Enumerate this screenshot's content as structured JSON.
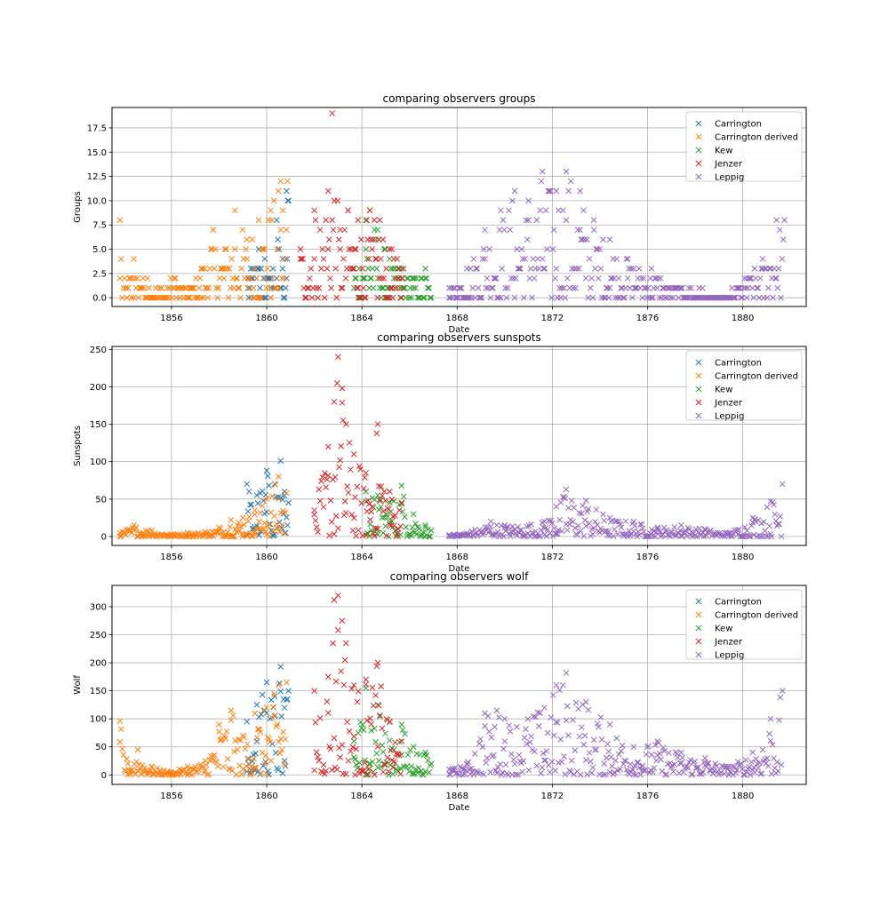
{
  "colors": {
    "Carrington": "#1f77b4",
    "Carrington derived": "#ff7f0e",
    "Kew": "#2ca02c",
    "Jenzer": "#d62728",
    "Leppig": "#9467bd"
  },
  "chart_data": [
    {
      "type": "scatter",
      "marker": "x",
      "title": "comparing observers groups",
      "xlabel": "Date",
      "ylabel": "Groups",
      "xlim": [
        "1853-07-01",
        "1882-09-01"
      ],
      "ylim": [
        -0.9,
        19.6
      ],
      "xticks": [
        "1856",
        "1860",
        "1864",
        "1868",
        "1872",
        "1876",
        "1880"
      ],
      "yticks": [
        0.0,
        2.5,
        5.0,
        7.5,
        10.0,
        12.5,
        15.0,
        17.5
      ],
      "ytick_labels": [
        "0.0",
        "2.5",
        "5.0",
        "7.5",
        "10.0",
        "12.5",
        "15.0",
        "17.5"
      ],
      "grid": true,
      "legend_position": "top-right",
      "series": [
        {
          "name": "Carrington",
          "x": [
            "1859-03-15",
            "1859-06-01",
            "1859-09-01",
            "1859-12-01",
            "1860-03-01",
            "1860-06-01",
            "1860-09-01",
            "1860-11-01",
            "1860-12-01"
          ],
          "y": [
            2,
            3,
            5,
            4,
            2,
            8,
            4,
            11,
            10
          ]
        },
        {
          "name": "Carrington derived",
          "x": [
            "1853-11-01",
            "1854-02-01",
            "1854-06-01",
            "1855-01-01",
            "1855-08-01",
            "1856-03-01",
            "1856-10-01",
            "1857-04-01",
            "1857-10-01",
            "1858-04-01",
            "1858-09-01",
            "1859-03-01",
            "1859-09-01",
            "1860-03-01",
            "1860-08-01",
            "1860-11-15"
          ],
          "y": [
            8,
            1,
            4,
            2,
            1,
            2,
            1,
            3,
            7,
            5,
            9,
            6,
            8,
            9,
            12,
            12
          ]
        },
        {
          "name": "Kew",
          "x": [
            "1863-09-01",
            "1864-03-01",
            "1864-09-01",
            "1865-03-01",
            "1865-09-01",
            "1866-03-01",
            "1866-09-01",
            "1866-12-01"
          ],
          "y": [
            3,
            8,
            7,
            4,
            3,
            2,
            3,
            0
          ]
        },
        {
          "name": "Jenzer",
          "x": [
            "1861-06-01",
            "1862-01-01",
            "1862-08-01",
            "1862-10-01",
            "1863-02-01",
            "1863-06-01",
            "1863-11-01",
            "1864-05-01",
            "1864-10-01",
            "1865-04-01",
            "1865-10-01"
          ],
          "y": [
            5,
            9,
            11,
            19,
            7,
            9,
            8,
            9,
            8,
            5,
            3
          ]
        },
        {
          "name": "Leppig",
          "x": [
            "1867-09-01",
            "1868-06-01",
            "1869-03-01",
            "1869-11-01",
            "1870-06-01",
            "1871-01-01",
            "1871-08-01",
            "1872-03-01",
            "1872-08-01",
            "1873-03-01",
            "1873-10-01",
            "1874-06-01",
            "1875-03-01",
            "1876-03-01",
            "1877-03-01",
            "1878-03-01",
            "1879-03-01",
            "1880-03-01",
            "1880-11-01",
            "1881-06-01",
            "1881-10-01"
          ],
          "y": [
            1,
            3,
            7,
            9,
            11,
            10,
            13,
            11,
            13,
            11,
            8,
            6,
            4,
            3,
            1,
            1,
            0,
            2,
            4,
            8,
            8
          ]
        }
      ]
    },
    {
      "type": "scatter",
      "marker": "x",
      "title": "comparing observers sunspots",
      "xlabel": "Date",
      "ylabel": "Sunspots",
      "xlim": [
        "1853-07-01",
        "1882-09-01"
      ],
      "ylim": [
        -12,
        254
      ],
      "xticks": [
        "1856",
        "1860",
        "1864",
        "1868",
        "1872",
        "1876",
        "1880"
      ],
      "yticks": [
        0,
        50,
        100,
        150,
        200,
        250
      ],
      "ytick_labels": [
        "0",
        "50",
        "100",
        "150",
        "200",
        "250"
      ],
      "grid": true,
      "legend_position": "top-right",
      "series": [
        {
          "name": "Carrington",
          "x": [
            "1859-03-01",
            "1859-08-01",
            "1860-01-01",
            "1860-05-01",
            "1860-08-01",
            "1860-10-01",
            "1860-12-01"
          ],
          "y": [
            70,
            55,
            88,
            70,
            101,
            60,
            45
          ]
        },
        {
          "name": "Carrington derived",
          "x": [
            "1853-11-01",
            "1854-06-01",
            "1855-03-01",
            "1856-01-01",
            "1856-09-01",
            "1857-06-01",
            "1858-01-01",
            "1858-07-01",
            "1859-01-01",
            "1859-07-01",
            "1860-01-01",
            "1860-07-01",
            "1860-11-01"
          ],
          "y": [
            5,
            15,
            8,
            3,
            5,
            6,
            12,
            22,
            25,
            35,
            50,
            80,
            58
          ]
        },
        {
          "name": "Kew",
          "x": [
            "1864-03-01",
            "1864-09-01",
            "1865-03-01",
            "1865-09-01",
            "1866-03-01",
            "1866-09-01",
            "1866-12-01"
          ],
          "y": [
            60,
            55,
            45,
            68,
            30,
            15,
            8
          ]
        },
        {
          "name": "Jenzer",
          "x": [
            "1862-01-01",
            "1862-08-01",
            "1862-11-01",
            "1863-01-01",
            "1863-03-01",
            "1863-05-01",
            "1863-09-01",
            "1864-03-01",
            "1864-09-01",
            "1865-03-01",
            "1865-09-01"
          ],
          "y": [
            35,
            120,
            180,
            240,
            198,
            150,
            110,
            85,
            150,
            60,
            45
          ]
        },
        {
          "name": "Leppig",
          "x": [
            "1867-09-01",
            "1868-06-01",
            "1869-06-01",
            "1870-01-01",
            "1871-09-01",
            "1872-03-01",
            "1872-08-01",
            "1873-06-01",
            "1874-06-01",
            "1875-06-01",
            "1876-06-01",
            "1877-06-01",
            "1878-06-01",
            "1879-06-01",
            "1880-06-01",
            "1881-03-01",
            "1881-09-01"
          ],
          "y": [
            2,
            5,
            20,
            15,
            20,
            40,
            63,
            48,
            25,
            20,
            12,
            15,
            10,
            5,
            25,
            47,
            70
          ]
        }
      ]
    },
    {
      "type": "scatter",
      "marker": "x",
      "title": "comparing observers wolf",
      "xlabel": "Date",
      "ylabel": "Wolf",
      "xlim": [
        "1853-07-01",
        "1882-09-01"
      ],
      "ylim": [
        -17,
        338
      ],
      "xticks": [
        "1856",
        "1860",
        "1864",
        "1868",
        "1872",
        "1876",
        "1880"
      ],
      "yticks": [
        0,
        50,
        100,
        150,
        200,
        250,
        300
      ],
      "ytick_labels": [
        "0",
        "50",
        "100",
        "150",
        "200",
        "250",
        "300"
      ],
      "grid": true,
      "legend_position": "top-right",
      "series": [
        {
          "name": "Carrington",
          "x": [
            "1859-03-01",
            "1859-08-01",
            "1860-01-01",
            "1860-05-01",
            "1860-08-01",
            "1860-10-01",
            "1860-12-01"
          ],
          "y": [
            95,
            125,
            165,
            140,
            193,
            120,
            150
          ]
        },
        {
          "name": "Carrington derived",
          "x": [
            "1853-11-01",
            "1854-03-01",
            "1854-08-01",
            "1855-03-01",
            "1856-01-01",
            "1856-09-01",
            "1857-06-01",
            "1858-01-01",
            "1858-07-01",
            "1859-01-01",
            "1859-07-01",
            "1860-01-01",
            "1860-07-01",
            "1860-11-01"
          ],
          "y": [
            96,
            20,
            45,
            15,
            5,
            15,
            25,
            90,
            115,
            70,
            110,
            120,
            160,
            165
          ]
        },
        {
          "name": "Kew",
          "x": [
            "1863-09-01",
            "1864-03-01",
            "1864-09-01",
            "1865-03-01",
            "1865-09-01",
            "1866-03-01",
            "1866-09-01",
            "1866-12-01"
          ],
          "y": [
            60,
            155,
            125,
            95,
            90,
            50,
            40,
            20
          ]
        },
        {
          "name": "Jenzer",
          "x": [
            "1862-01-01",
            "1862-08-01",
            "1862-11-01",
            "1863-01-01",
            "1863-03-01",
            "1863-05-01",
            "1863-09-01",
            "1864-03-01",
            "1864-09-01",
            "1865-03-01",
            "1865-09-01"
          ],
          "y": [
            150,
            175,
            312,
            320,
            275,
            235,
            160,
            170,
            200,
            95,
            60
          ]
        },
        {
          "name": "Leppig",
          "x": [
            "1867-09-01",
            "1868-06-01",
            "1869-03-01",
            "1869-09-01",
            "1870-01-01",
            "1871-09-01",
            "1872-03-01",
            "1872-08-01",
            "1873-06-01",
            "1874-06-01",
            "1875-06-01",
            "1876-06-01",
            "1877-06-01",
            "1878-06-01",
            "1879-06-01",
            "1880-06-01",
            "1881-03-01",
            "1881-09-01"
          ],
          "y": [
            10,
            20,
            110,
            115,
            100,
            120,
            160,
            182,
            130,
            90,
            50,
            60,
            40,
            30,
            15,
            40,
            100,
            150
          ]
        }
      ]
    }
  ]
}
